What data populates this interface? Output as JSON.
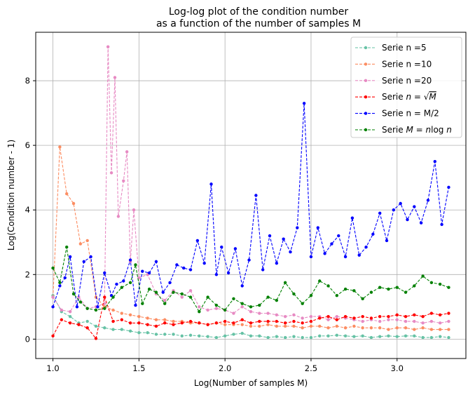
{
  "chart_data": {
    "type": "line",
    "title_lines": [
      "Log-log plot of the condition number",
      "as a function of the number of samples M"
    ],
    "xlabel": "Log(Number of samples M)",
    "ylabel": "Log(Condition number - 1)",
    "xlim": [
      0.9,
      3.4
    ],
    "ylim": [
      -0.6,
      9.5
    ],
    "xticks": [
      1.0,
      1.5,
      2.0,
      2.5,
      3.0
    ],
    "xtick_labels": [
      "1.0",
      "1.5",
      "2.0",
      "2.5",
      "3.0"
    ],
    "yticks": [
      0,
      2,
      4,
      6,
      8
    ],
    "ytick_labels": [
      "0",
      "2",
      "4",
      "6",
      "8"
    ],
    "grid": true,
    "legend_position": "top-right",
    "series": [
      {
        "name": "Serie n =5",
        "color": "#66c2a5",
        "x": [
          1.0,
          1.05,
          1.1,
          1.15,
          1.2,
          1.25,
          1.3,
          1.35,
          1.4,
          1.45,
          1.5,
          1.55,
          1.6,
          1.65,
          1.7,
          1.75,
          1.8,
          1.85,
          1.9,
          1.95,
          2.0,
          2.05,
          2.1,
          2.15,
          2.2,
          2.25,
          2.3,
          2.35,
          2.4,
          2.45,
          2.5,
          2.55,
          2.6,
          2.65,
          2.7,
          2.75,
          2.8,
          2.85,
          2.9,
          2.95,
          3.0,
          3.05,
          3.1,
          3.15,
          3.2,
          3.25,
          3.3
        ],
        "y": [
          1.35,
          0.85,
          0.7,
          0.5,
          0.55,
          0.4,
          0.35,
          0.3,
          0.3,
          0.25,
          0.2,
          0.2,
          0.15,
          0.15,
          0.15,
          0.1,
          0.12,
          0.1,
          0.08,
          0.05,
          0.1,
          0.15,
          0.18,
          0.1,
          0.1,
          0.05,
          0.08,
          0.05,
          0.08,
          0.05,
          0.05,
          0.1,
          0.1,
          0.12,
          0.1,
          0.08,
          0.1,
          0.05,
          0.08,
          0.1,
          0.08,
          0.1,
          0.1,
          0.05,
          0.05,
          0.08,
          0.05
        ]
      },
      {
        "name": "Serie n =10",
        "color": "#fc8d62",
        "x": [
          1.0,
          1.04,
          1.08,
          1.12,
          1.16,
          1.2,
          1.25,
          1.3,
          1.35,
          1.4,
          1.45,
          1.5,
          1.55,
          1.6,
          1.65,
          1.7,
          1.75,
          1.8,
          1.85,
          1.9,
          1.95,
          2.0,
          2.05,
          2.1,
          2.15,
          2.2,
          2.25,
          2.3,
          2.35,
          2.4,
          2.45,
          2.5,
          2.55,
          2.6,
          2.65,
          2.7,
          2.75,
          2.8,
          2.85,
          2.9,
          2.95,
          3.0,
          3.05,
          3.1,
          3.15,
          3.2,
          3.25,
          3.3
        ],
        "y": [
          1.3,
          5.95,
          4.5,
          4.2,
          2.95,
          3.05,
          1.3,
          1.0,
          0.9,
          0.8,
          0.75,
          0.7,
          0.65,
          0.6,
          0.6,
          0.55,
          0.55,
          0.5,
          0.5,
          0.45,
          0.5,
          0.45,
          0.45,
          0.45,
          0.4,
          0.4,
          0.45,
          0.4,
          0.4,
          0.4,
          0.35,
          0.4,
          0.4,
          0.35,
          0.4,
          0.35,
          0.4,
          0.35,
          0.35,
          0.35,
          0.3,
          0.35,
          0.35,
          0.3,
          0.35,
          0.3,
          0.3,
          0.3
        ]
      },
      {
        "name": "Serie n =20",
        "color": "#e78ac3",
        "x": [
          1.0,
          1.05,
          1.1,
          1.15,
          1.2,
          1.25,
          1.3,
          1.32,
          1.34,
          1.36,
          1.38,
          1.41,
          1.43,
          1.45,
          1.47,
          1.5,
          1.55,
          1.6,
          1.65,
          1.7,
          1.75,
          1.8,
          1.85,
          1.9,
          1.95,
          2.0,
          2.05,
          2.1,
          2.15,
          2.2,
          2.25,
          2.3,
          2.35,
          2.4,
          2.45,
          2.5,
          2.55,
          2.6,
          2.65,
          2.7,
          2.75,
          2.8,
          2.85,
          2.9,
          2.95,
          3.0,
          3.05,
          3.1,
          3.15,
          3.2,
          3.25,
          3.3
        ],
        "y": [
          1.3,
          0.9,
          0.85,
          1.3,
          0.95,
          1.0,
          1.1,
          9.05,
          5.15,
          8.1,
          3.8,
          4.9,
          5.8,
          2.4,
          4.0,
          1.9,
          2.0,
          1.4,
          1.2,
          1.5,
          1.3,
          1.5,
          1.0,
          0.9,
          0.95,
          0.9,
          0.8,
          1.0,
          0.85,
          0.8,
          0.8,
          0.75,
          0.7,
          0.75,
          0.65,
          0.7,
          0.7,
          0.6,
          0.7,
          0.65,
          0.6,
          0.55,
          0.6,
          0.55,
          0.6,
          0.6,
          0.55,
          0.55,
          0.5,
          0.55,
          0.5,
          0.55
        ]
      },
      {
        "name": "Serie $n = \\sqrt{M}$",
        "color": "#ff0000",
        "x": [
          1.0,
          1.05,
          1.1,
          1.15,
          1.2,
          1.25,
          1.3,
          1.35,
          1.4,
          1.45,
          1.5,
          1.55,
          1.6,
          1.65,
          1.7,
          1.75,
          1.8,
          1.85,
          1.9,
          1.95,
          2.0,
          2.05,
          2.1,
          2.15,
          2.2,
          2.25,
          2.3,
          2.35,
          2.4,
          2.45,
          2.5,
          2.55,
          2.6,
          2.65,
          2.7,
          2.75,
          2.8,
          2.85,
          2.9,
          2.95,
          3.0,
          3.05,
          3.1,
          3.15,
          3.2,
          3.25,
          3.3
        ],
        "y": [
          0.1,
          0.6,
          0.5,
          0.45,
          0.35,
          0.02,
          1.3,
          0.55,
          0.6,
          0.5,
          0.5,
          0.45,
          0.4,
          0.5,
          0.45,
          0.5,
          0.55,
          0.5,
          0.45,
          0.5,
          0.55,
          0.5,
          0.6,
          0.5,
          0.55,
          0.55,
          0.55,
          0.5,
          0.55,
          0.5,
          0.55,
          0.65,
          0.7,
          0.6,
          0.7,
          0.65,
          0.7,
          0.65,
          0.7,
          0.7,
          0.75,
          0.7,
          0.75,
          0.7,
          0.8,
          0.75,
          0.8
        ]
      },
      {
        "name": "Serie n = M/2",
        "color": "#0000ff",
        "x": [
          1.0,
          1.04,
          1.07,
          1.1,
          1.14,
          1.18,
          1.22,
          1.26,
          1.3,
          1.34,
          1.37,
          1.41,
          1.45,
          1.48,
          1.52,
          1.56,
          1.6,
          1.64,
          1.68,
          1.72,
          1.76,
          1.8,
          1.84,
          1.88,
          1.92,
          1.95,
          1.98,
          2.02,
          2.06,
          2.1,
          2.14,
          2.18,
          2.22,
          2.26,
          2.3,
          2.34,
          2.38,
          2.42,
          2.46,
          2.5,
          2.54,
          2.58,
          2.62,
          2.66,
          2.7,
          2.74,
          2.78,
          2.82,
          2.86,
          2.9,
          2.94,
          2.98,
          3.02,
          3.06,
          3.1,
          3.14,
          3.18,
          3.22,
          3.26,
          3.3
        ],
        "y": [
          1.0,
          1.65,
          1.9,
          2.55,
          1.0,
          2.4,
          2.55,
          1.0,
          2.05,
          1.35,
          1.7,
          1.8,
          2.45,
          1.05,
          2.1,
          2.05,
          2.4,
          1.45,
          1.75,
          2.3,
          2.2,
          2.15,
          3.05,
          2.35,
          4.8,
          2.0,
          2.85,
          2.05,
          2.8,
          1.65,
          2.45,
          4.45,
          2.15,
          3.2,
          2.35,
          3.1,
          2.7,
          3.45,
          7.3,
          2.55,
          3.45,
          2.65,
          2.95,
          3.2,
          2.55,
          3.75,
          2.6,
          2.85,
          3.25,
          3.9,
          3.05,
          4.0,
          4.2,
          3.7,
          4.1,
          3.6,
          4.3,
          5.5,
          3.55,
          4.7
        ]
      },
      {
        "name": "Serie $M = n \\log n$",
        "color": "#008000",
        "x": [
          1.0,
          1.04,
          1.08,
          1.12,
          1.16,
          1.2,
          1.25,
          1.3,
          1.35,
          1.4,
          1.45,
          1.48,
          1.52,
          1.56,
          1.6,
          1.65,
          1.7,
          1.75,
          1.8,
          1.85,
          1.9,
          1.95,
          2.0,
          2.05,
          2.1,
          2.15,
          2.2,
          2.25,
          2.3,
          2.35,
          2.4,
          2.45,
          2.5,
          2.55,
          2.6,
          2.65,
          2.7,
          2.75,
          2.8,
          2.85,
          2.9,
          2.95,
          3.0,
          3.05,
          3.1,
          3.15,
          3.2,
          3.25,
          3.3
        ],
        "y": [
          2.2,
          1.75,
          2.85,
          1.4,
          1.15,
          0.95,
          0.9,
          0.95,
          1.3,
          1.6,
          1.75,
          2.3,
          1.1,
          1.55,
          1.45,
          1.1,
          1.45,
          1.4,
          1.3,
          0.85,
          1.3,
          1.05,
          0.9,
          1.25,
          1.1,
          1.0,
          1.05,
          1.3,
          1.2,
          1.75,
          1.4,
          1.1,
          1.35,
          1.8,
          1.65,
          1.35,
          1.55,
          1.5,
          1.25,
          1.45,
          1.6,
          1.55,
          1.6,
          1.45,
          1.65,
          1.95,
          1.75,
          1.7,
          1.6
        ]
      }
    ]
  }
}
